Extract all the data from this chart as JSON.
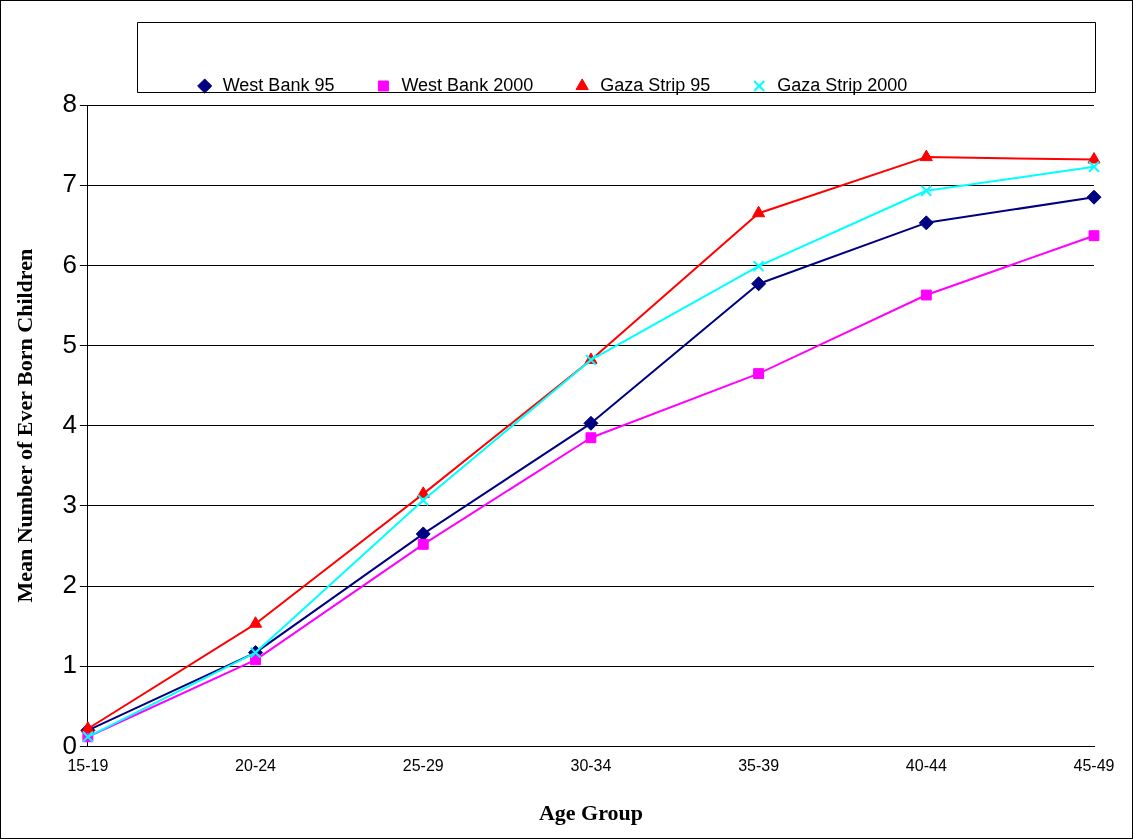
{
  "chart_data": {
    "type": "line",
    "xlabel": "Age Group",
    "ylabel": "Mean Number of Ever Born Children",
    "categories": [
      "15-19",
      "20-24",
      "25-29",
      "30-34",
      "35-39",
      "40-44",
      "45-49"
    ],
    "series": [
      {
        "name": "West Bank 95",
        "color": "#000080",
        "marker": "diamond",
        "values": [
          0.2,
          1.17,
          2.65,
          4.03,
          5.77,
          6.53,
          6.85
        ]
      },
      {
        "name": "West Bank 2000",
        "color": "#ff00ff",
        "marker": "square",
        "values": [
          0.12,
          1.08,
          2.52,
          3.85,
          4.65,
          5.63,
          6.37
        ]
      },
      {
        "name": "Gaza Strip 95",
        "color": "#ff0000",
        "marker": "triangle",
        "values": [
          0.22,
          1.53,
          3.15,
          4.82,
          6.65,
          7.35,
          7.32
        ]
      },
      {
        "name": "Gaza Strip 2000",
        "color": "#00ffff",
        "marker": "cross",
        "values": [
          0.12,
          1.17,
          3.07,
          4.82,
          5.99,
          6.93,
          7.23
        ]
      }
    ],
    "ylim": [
      0,
      8
    ],
    "yticks": [
      0,
      1,
      2,
      3,
      4,
      5,
      6,
      7,
      8
    ],
    "grid": "y",
    "legend": "top"
  }
}
